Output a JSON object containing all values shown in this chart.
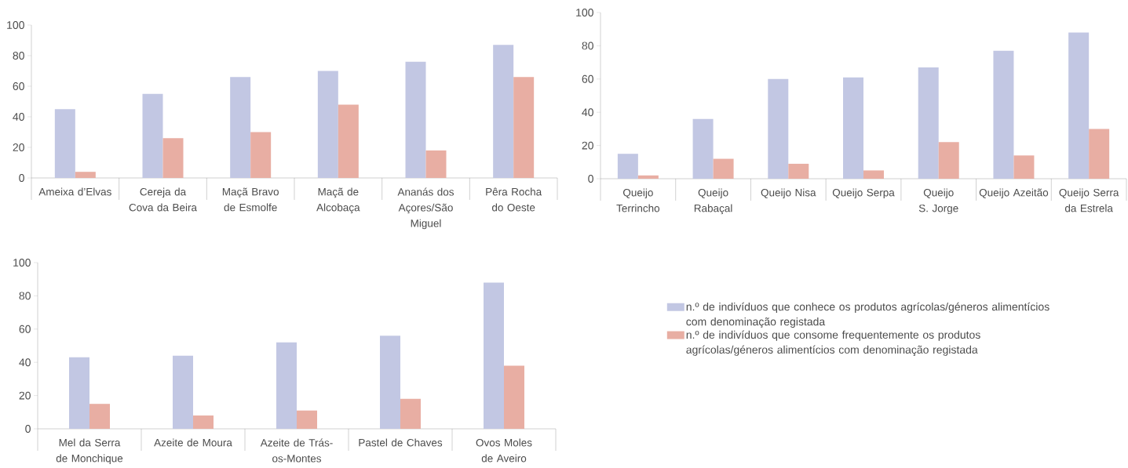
{
  "chart_data": [
    {
      "type": "bar",
      "categories": [
        "Ameixa d’Elvas",
        "Cereja da Cova da Beira",
        "Maçã Bravo de Esmolfe",
        "Maçã de Alcobaça",
        "Ananás dos Açores/São Miguel",
        "Pêra Rocha do Oeste"
      ],
      "ylim": [
        0,
        100
      ],
      "yticks": [
        0,
        20,
        40,
        60,
        80,
        100
      ],
      "series": [
        {
          "color": "#c2c7e3",
          "values": [
            45,
            55,
            66,
            70,
            76,
            87
          ]
        },
        {
          "color": "#e8aea3",
          "values": [
            4,
            26,
            30,
            48,
            18,
            66
          ]
        }
      ]
    },
    {
      "type": "bar",
      "categories": [
        "Queijo Terrincho",
        "Queijo Rabaçal",
        "Queijo Nisa",
        "Queijo Serpa",
        "Queijo S. Jorge",
        "Queijo Azeitão",
        "Queijo Serra da Estrela"
      ],
      "ylim": [
        0,
        100
      ],
      "yticks": [
        0,
        20,
        40,
        60,
        80,
        100
      ],
      "series": [
        {
          "color": "#c2c7e3",
          "values": [
            15,
            36,
            60,
            61,
            67,
            77,
            88
          ]
        },
        {
          "color": "#e8aea3",
          "values": [
            2,
            12,
            9,
            5,
            22,
            14,
            30
          ]
        }
      ]
    },
    {
      "type": "bar",
      "categories": [
        "Mel da Serra de Monchique",
        "Azeite de Moura",
        "Azeite de Trás-os-Montes",
        "Pastel de Chaves",
        "Ovos Moles de Aveiro"
      ],
      "ylim": [
        0,
        100
      ],
      "yticks": [
        0,
        20,
        40,
        60,
        80,
        100
      ],
      "legend": "right",
      "series": [
        {
          "name": "n.º de indivíduos que conhece os produtos agrícolas/géneros alimentícios com denominação registada",
          "color": "#c2c7e3",
          "values": [
            43,
            44,
            52,
            56,
            88
          ]
        },
        {
          "name": "n.º de indivíduos que consome frequentemente os produtos agrícolas/géneros alimentícios com denominação registada",
          "color": "#e8aea3",
          "values": [
            15,
            8,
            11,
            18,
            38
          ]
        }
      ]
    }
  ]
}
